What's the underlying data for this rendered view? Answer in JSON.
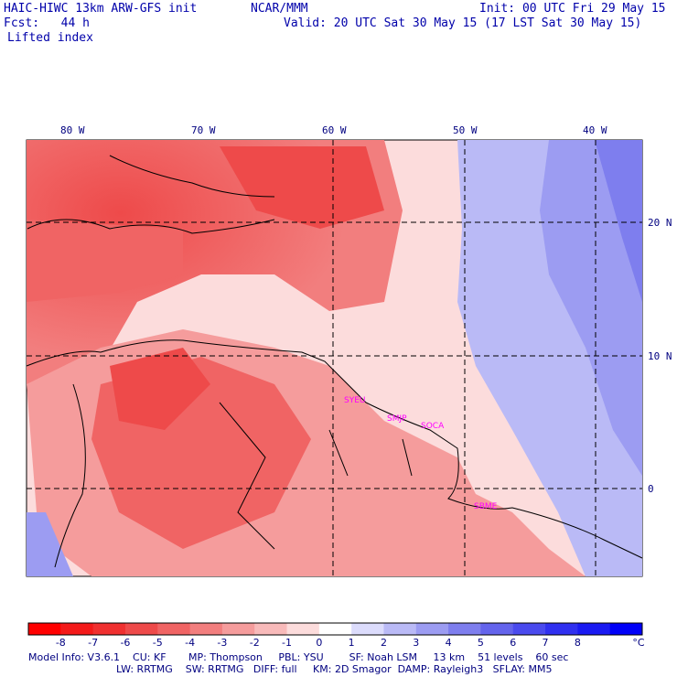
{
  "header": {
    "model": "HAIC-HIWC 13km ARW-GFS init",
    "org": "NCAR/MMM",
    "init": "Init: 00 UTC Fri 29 May 15",
    "fcst": "Fcst:   44 h",
    "valid": "Valid: 20 UTC Sat 30 May 15 (17 LST Sat 30 May 15)",
    "field": "Lifted index"
  },
  "map": {
    "lon_labels": [
      "80 W",
      "70 W",
      "60 W",
      "50 W",
      "40 W"
    ],
    "lat_labels": [
      "20 N",
      "10 N",
      "0"
    ],
    "stations": [
      "SYEU",
      "SMJP",
      "SOCA",
      "SBME"
    ],
    "station_color": "#ff00ff"
  },
  "colorbar": {
    "levels": [
      "-8",
      "-7",
      "-6",
      "-5",
      "-4",
      "-3",
      "-2",
      "-1",
      "0",
      "1",
      "2",
      "3",
      "4",
      "5",
      "6",
      "7",
      "8"
    ],
    "unit": "°C",
    "colors": [
      "#ff0000",
      "#f41a1a",
      "#f03030",
      "#ee4a4a",
      "#f06464",
      "#f27e7e",
      "#f59c9c",
      "#f8baba",
      "#fcdcdc",
      "#ffffff",
      "#dcdcfc",
      "#babaf6",
      "#9c9cf2",
      "#7e7eee",
      "#6464ec",
      "#4a4aee",
      "#3030f0",
      "#1a1af2",
      "#0000f8"
    ]
  },
  "model_info": {
    "line1": "Model Info: V3.6.1    CU: KF       MP: Thompson     PBL: YSU        SF: Noah LSM     13 km    51 levels    60 sec",
    "line2": "LW: RRTMG    SW: RRTMG   DIFF: full     KM: 2D Smagor  DAMP: Rayleigh3   SFLAY: MM5"
  }
}
